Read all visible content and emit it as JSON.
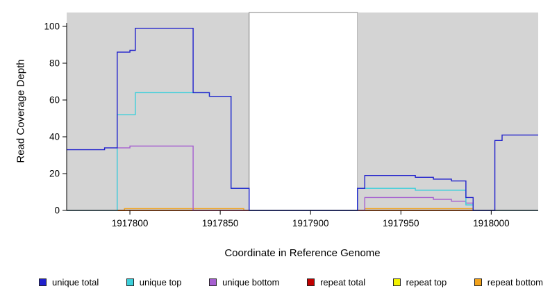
{
  "chart_data": {
    "type": "line",
    "subtype": "step-coverage-plot",
    "title": "",
    "xlabel": "Coordinate in Reference Genome",
    "ylabel": "Read Coverage Depth",
    "x_range": [
      1917765,
      1918026
    ],
    "y_range": [
      0,
      107
    ],
    "x_ticks": [
      1917800,
      1917850,
      1917900,
      1917950,
      1918000
    ],
    "y_ticks": [
      0,
      20,
      40,
      60,
      80,
      100
    ],
    "grid": false,
    "legend_position": "bottom",
    "background_regions": [
      {
        "name": "left-gray-region",
        "x0": 1917765,
        "x1": 1917866,
        "color": "#d4d4d4",
        "border": "none"
      },
      {
        "name": "white-gap-region",
        "x0": 1917866,
        "x1": 1917926,
        "color": "#ffffff",
        "border": "#808080"
      },
      {
        "name": "right-gray-region",
        "x0": 1917926,
        "x1": 1918026,
        "color": "#d4d4d4",
        "border": "none"
      }
    ],
    "series": [
      {
        "name": "unique total",
        "color": "#2121cc",
        "points": [
          [
            1917765,
            33
          ],
          [
            1917786,
            34
          ],
          [
            1917793,
            86
          ],
          [
            1917800,
            87
          ],
          [
            1917803,
            99
          ],
          [
            1917835,
            64
          ],
          [
            1917844,
            62
          ],
          [
            1917856,
            12
          ],
          [
            1917866,
            0
          ],
          [
            1917926,
            12
          ],
          [
            1917930,
            19
          ],
          [
            1917958,
            18
          ],
          [
            1917968,
            17
          ],
          [
            1917978,
            16
          ],
          [
            1917986,
            7
          ],
          [
            1917990,
            0
          ],
          [
            1918002,
            38
          ],
          [
            1918006,
            41
          ],
          [
            1918026,
            41
          ]
        ]
      },
      {
        "name": "unique top",
        "color": "#3ccfda",
        "points": [
          [
            1917765,
            0
          ],
          [
            1917793,
            52
          ],
          [
            1917803,
            64
          ],
          [
            1917844,
            62
          ],
          [
            1917856,
            12
          ],
          [
            1917866,
            0
          ],
          [
            1917926,
            12
          ],
          [
            1917958,
            11
          ],
          [
            1917986,
            3
          ],
          [
            1917990,
            0
          ],
          [
            1918026,
            0
          ]
        ]
      },
      {
        "name": "unique bottom",
        "color": "#a65fd0",
        "points": [
          [
            1917765,
            0
          ],
          [
            1917793,
            34
          ],
          [
            1917800,
            35
          ],
          [
            1917835,
            0
          ],
          [
            1917930,
            7
          ],
          [
            1917968,
            6
          ],
          [
            1917978,
            5
          ],
          [
            1917986,
            4
          ],
          [
            1917990,
            0
          ],
          [
            1918026,
            0
          ]
        ]
      },
      {
        "name": "repeat total",
        "color": "#c00000",
        "points": [
          [
            1917765,
            0
          ],
          [
            1918026,
            0
          ]
        ]
      },
      {
        "name": "repeat top",
        "color": "#f2f200",
        "points": [
          [
            1917765,
            0
          ],
          [
            1918026,
            0
          ]
        ]
      },
      {
        "name": "repeat bottom",
        "color": "#f2a21a",
        "points": [
          [
            1917765,
            0
          ],
          [
            1917797,
            1
          ],
          [
            1917863,
            0
          ],
          [
            1917930,
            1
          ],
          [
            1917990,
            0
          ],
          [
            1918026,
            0
          ]
        ]
      }
    ]
  }
}
